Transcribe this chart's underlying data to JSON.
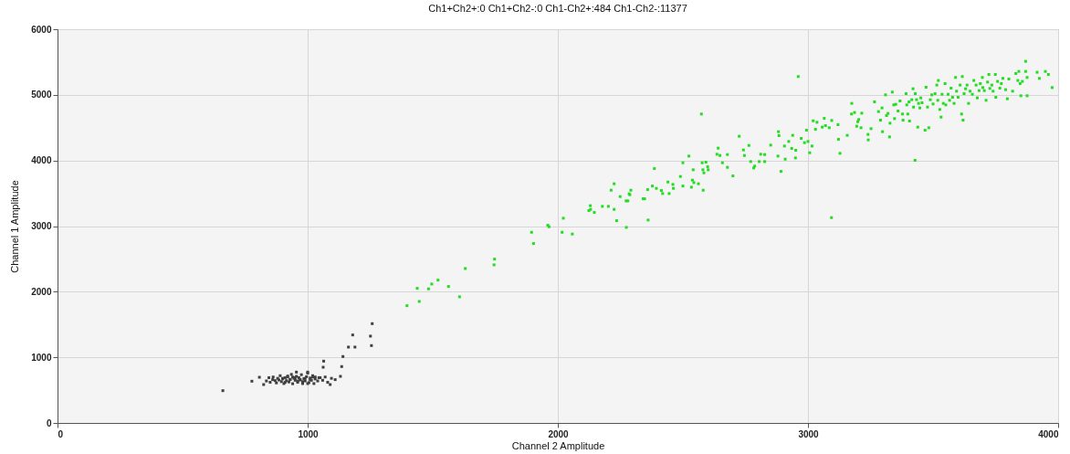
{
  "chart_data": {
    "type": "scatter",
    "title": "Ch1+Ch2+:0  Ch1+Ch2-:0  Ch1-Ch2+:484  Ch1-Ch2-:11377",
    "xlabel": "Channel 2 Amplitude",
    "ylabel": "Channel 1 Amplitude",
    "xlim": [
      0,
      4000
    ],
    "xticks": [
      0,
      1000,
      2000,
      3000,
      4000
    ],
    "ylim": [
      0,
      6000
    ],
    "yticks": [
      0,
      1000,
      2000,
      3000,
      4000,
      5000,
      6000
    ],
    "grid": true,
    "marker": "square",
    "series": [
      {
        "color": "#404040",
        "x": [
          661,
          777,
          807,
          824,
          1258,
          1180,
          1251,
          1163,
          1189,
          1255,
          1141,
          1064,
          1062,
          1136,
          1131,
          835,
          845,
          850,
          860,
          862,
          870,
          875,
          880,
          885,
          890,
          895,
          900,
          905,
          910,
          915,
          920,
          925,
          930,
          935,
          940,
          945,
          950,
          955,
          960,
          965,
          970,
          975,
          980,
          985,
          990,
          995,
          1000,
          1005,
          1010,
          1015,
          1020,
          1025,
          1030,
          1040,
          1050,
          1060,
          1070,
          1080,
          1095,
          1110,
          900,
          920,
          940,
          960,
          980,
          1000,
          1020,
          910,
          930,
          950,
          970,
          990,
          1010,
          1030,
          1045,
          955,
          1000,
          1090
        ],
        "values": [
          492,
          636,
          696,
          585,
          1513,
          1341,
          1323,
          1156,
          1156,
          1179,
          1012,
          942,
          849,
          859,
          710,
          640,
          690,
          620,
          660,
          700,
          645,
          610,
          680,
          655,
          720,
          630,
          670,
          600,
          690,
          645,
          715,
          625,
          665,
          740,
          598,
          680,
          650,
          710,
          620,
          690,
          655,
          735,
          600,
          675,
          640,
          705,
          760,
          615,
          685,
          650,
          720,
          600,
          670,
          640,
          690,
          650,
          700,
          620,
          680,
          660,
          680,
          700,
          700,
          640,
          630,
          600,
          700,
          620,
          660,
          690,
          660,
          680,
          660,
          700,
          690,
          775,
          775,
          585
        ]
      },
      {
        "color": "#22dd22",
        "x": [
          1397,
          1446,
          1438,
          1483,
          1496,
          1521,
          1563,
          1607,
          1630,
          1747,
          1745,
          1895,
          1903,
          1960,
          1965,
          2017,
          2022,
          2058,
          2124,
          2130,
          2131,
          2146,
          2178,
          2202,
          2225,
          2213,
          2225,
          2235,
          2249,
          2273,
          2280,
          2285,
          2288,
          2292,
          2274,
          2341,
          2347,
          2359,
          2361,
          2378,
          2386,
          2394,
          2414,
          2419,
          2440,
          2445,
          2460,
          2462,
          2490,
          2500,
          2500,
          2524,
          2534,
          2538,
          2544,
          2541,
          2562,
          2574,
          2577,
          2580,
          2581,
          2584,
          2592,
          2599,
          2601,
          2636,
          2641,
          2648,
          2658,
          2678,
          2678,
          2700,
          2725,
          2742,
          2746,
          2764,
          2771,
          2783,
          2787,
          2805,
          2811,
          2827,
          2827,
          2851,
          2880,
          2892,
          2882,
          2884,
          2906,
          2909,
          2923,
          2935,
          2939,
          2950,
          2951,
          2961,
          2973,
          2986,
          2994,
          3000,
          3007,
          3016,
          3021,
          3030,
          3036,
          3057,
          3065,
          3070,
          3085,
          3094,
          3095,
          3120,
          3122,
          3128,
          3157,
          3175,
          3174,
          3186,
          3195,
          3199,
          3203,
          3212,
          3215,
          3240,
          3241,
          3252,
          3266,
          3282,
          3290,
          3296,
          3298,
          3310,
          3314,
          3320,
          3326,
          3328,
          3337,
          3343,
          3346,
          3351,
          3360,
          3368,
          3378,
          3380,
          3392,
          3395,
          3399,
          3404,
          3406,
          3415,
          3420,
          3422,
          3428,
          3429,
          3434,
          3439,
          3442,
          3447,
          3451,
          3456,
          3468,
          3472,
          3478,
          3483,
          3489,
          3495,
          3500,
          3508,
          3515,
          3519,
          3521,
          3527,
          3532,
          3536,
          3541,
          3548,
          3551,
          3560,
          3566,
          3572,
          3578,
          3584,
          3590,
          3594,
          3600,
          3608,
          3614,
          3617,
          3620,
          3624,
          3630,
          3636,
          3642,
          3648,
          3657,
          3663,
          3672,
          3677,
          3684,
          3689,
          3697,
          3699,
          3705,
          3712,
          3718,
          3723,
          3727,
          3735,
          3740,
          3749,
          3751,
          3758,
          3767,
          3773,
          3779,
          3790,
          3797,
          3803,
          3818,
          3831,
          3839,
          3843,
          3848,
          3851,
          3857,
          3870,
          3870,
          3876,
          3876,
          3916,
          3925,
          3949,
          3961,
          3976
        ],
        "values": [
          1787,
          1852,
          2052,
          2043,
          2117,
          2177,
          2080,
          1922,
          2354,
          2497,
          2409,
          2906,
          2734,
          3013,
          2990,
          2906,
          3120,
          2879,
          3236,
          3311,
          3255,
          3208,
          3301,
          3301,
          3255,
          3547,
          3645,
          3082,
          3450,
          3384,
          3384,
          3492,
          3478,
          3547,
          2980,
          3416,
          3416,
          3556,
          3092,
          3611,
          3876,
          3575,
          3542,
          3496,
          3672,
          3496,
          3635,
          3575,
          3756,
          3611,
          3965,
          4067,
          3593,
          3700,
          3663,
          3858,
          3645,
          4708,
          3965,
          3858,
          3547,
          3812,
          3974,
          3904,
          3858,
          4095,
          4188,
          4076,
          3965,
          4090,
          3895,
          3765,
          4369,
          4160,
          4076,
          4229,
          3983,
          3886,
          3914,
          3983,
          4095,
          4090,
          3983,
          4234,
          4067,
          3834,
          4439,
          4378,
          4220,
          4020,
          4290,
          4183,
          4383,
          4039,
          4155,
          5279,
          4336,
          4271,
          4461,
          4290,
          4118,
          4220,
          4604,
          4475,
          4582,
          4508,
          4642,
          4531,
          4499,
          3129,
          4610,
          4545,
          4322,
          4109,
          4383,
          4870,
          4708,
          4731,
          4522,
          4591,
          4624,
          4499,
          4721,
          4397,
          4313,
          4485,
          4893,
          4745,
          4615,
          4801,
          4439,
          5000,
          4684,
          4717,
          4359,
          4568,
          5042,
          4847,
          4638,
          4856,
          4754,
          4907,
          4708,
          4615,
          5018,
          4847,
          4708,
          4893,
          4601,
          4926,
          5093,
          4814,
          4002,
          5018,
          4926,
          4508,
          4870,
          4801,
          4954,
          4879,
          4461,
          5116,
          4814,
          4499,
          4926,
          5000,
          4861,
          5018,
          5149,
          4917,
          5219,
          4777,
          4661,
          5009,
          4870,
          5172,
          4847,
          5009,
          4917,
          5102,
          4963,
          4870,
          5265,
          5056,
          4963,
          5149,
          4708,
          5279,
          4615,
          5018,
          5093,
          5149,
          4870,
          5056,
          5009,
          5219,
          5149,
          4954,
          5065,
          5172,
          5265,
          5111,
          5065,
          4917,
          5195,
          5311,
          5098,
          5149,
          5056,
          5311,
          4963,
          5205,
          5102,
          5172,
          5251,
          5079,
          4940,
          5242,
          5056,
          5325,
          5219,
          5357,
          5172,
          4986,
          5205,
          5511,
          5357,
          4986,
          5265,
          5344,
          5251,
          5357,
          5311,
          5111
        ]
      }
    ]
  }
}
